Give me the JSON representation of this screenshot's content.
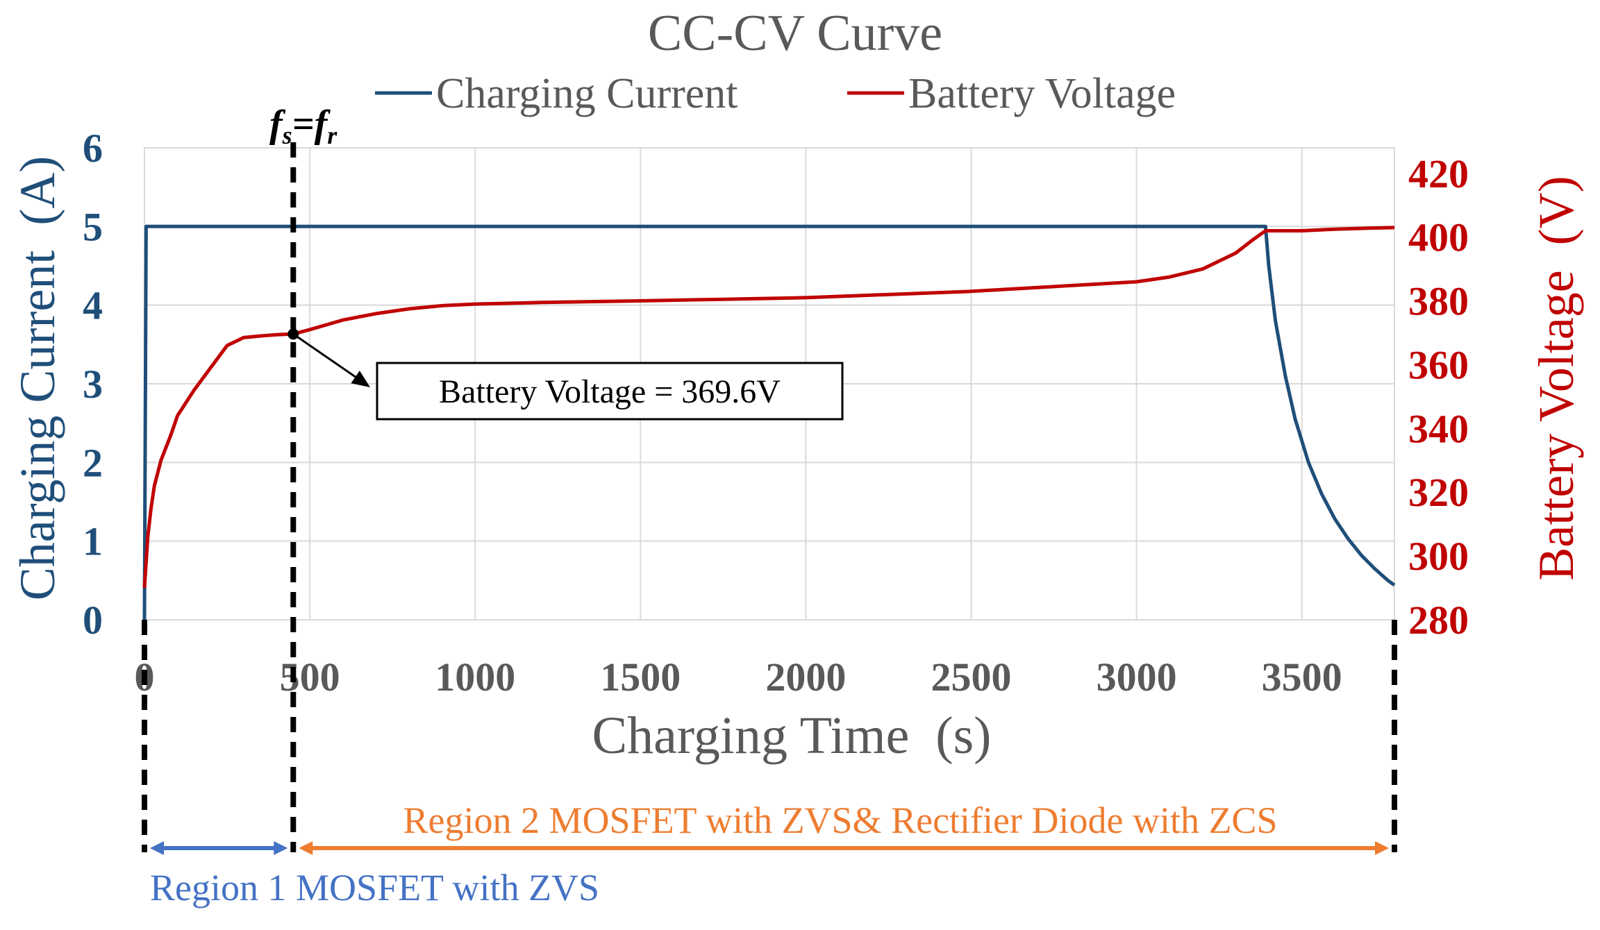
{
  "colors": {
    "current": "#1F4E79",
    "voltage": "#C00000",
    "title": "#595959",
    "tick_x": "#595959",
    "grid": "#d9d9d9",
    "region1": "#4472C4",
    "region2": "#ED7D31",
    "annotation": "#000000"
  },
  "chart_data": {
    "type": "line",
    "title": "CC-CV Curve",
    "xlabel": "Charging Time  (s)",
    "ylabel_left": "Charging Current  (A)",
    "ylabel_right": "Battery Voltage  (V)",
    "xlim": [
      0,
      3780
    ],
    "ylim_left": [
      0,
      6
    ],
    "ylim_right": [
      280,
      428
    ],
    "x_ticks": [
      0,
      500,
      1000,
      1500,
      2000,
      2500,
      3000,
      3500
    ],
    "y_ticks_left": [
      0,
      1,
      2,
      3,
      4,
      5,
      6
    ],
    "y_ticks_right": [
      280,
      300,
      320,
      340,
      360,
      380,
      400,
      420
    ],
    "grid": true,
    "legend_position": "top-center",
    "series": [
      {
        "name": "Charging Current",
        "axis": "left",
        "x": [
          0,
          5,
          10,
          3200,
          3390,
          3400,
          3420,
          3450,
          3480,
          3520,
          3560,
          3600,
          3640,
          3680,
          3720,
          3760,
          3780
        ],
        "y": [
          0,
          5,
          5,
          5,
          5,
          4.5,
          3.8,
          3.1,
          2.55,
          2.0,
          1.6,
          1.28,
          1.03,
          0.82,
          0.65,
          0.5,
          0.44
        ]
      },
      {
        "name": "Battery Voltage",
        "axis": "right",
        "x": [
          0,
          5,
          10,
          20,
          30,
          50,
          80,
          100,
          150,
          200,
          250,
          300,
          350,
          400,
          450,
          500,
          600,
          700,
          800,
          900,
          1000,
          1200,
          1500,
          2000,
          2500,
          3000,
          3100,
          3200,
          3250,
          3300,
          3350,
          3390,
          3400,
          3500,
          3600,
          3700,
          3780
        ],
        "y": [
          290,
          298,
          306,
          315,
          322,
          330,
          338,
          344,
          352,
          359,
          366,
          368.5,
          369,
          369.4,
          369.6,
          371,
          374,
          376,
          377.5,
          378.5,
          379,
          379.5,
          380,
          381,
          383,
          386,
          387.5,
          390,
          392.5,
          395,
          399,
          402,
          402,
          402,
          402.5,
          402.8,
          403
        ]
      }
    ],
    "annotations": {
      "marker_label": "f",
      "marker_sub_1": "s",
      "marker_eq": "=",
      "marker_sub_2": "r",
      "marker_x": 450,
      "point": {
        "x": 450,
        "y": 369.6
      },
      "callout_text": "Battery Voltage = 369.6V"
    },
    "regions": [
      {
        "label": "Region 1 MOSFET with ZVS",
        "x_start": 0,
        "x_end": 450
      },
      {
        "label": "Region 2 MOSFET with ZVS& Rectifier Diode with ZCS",
        "x_start": 450,
        "x_end": 3780
      }
    ]
  }
}
